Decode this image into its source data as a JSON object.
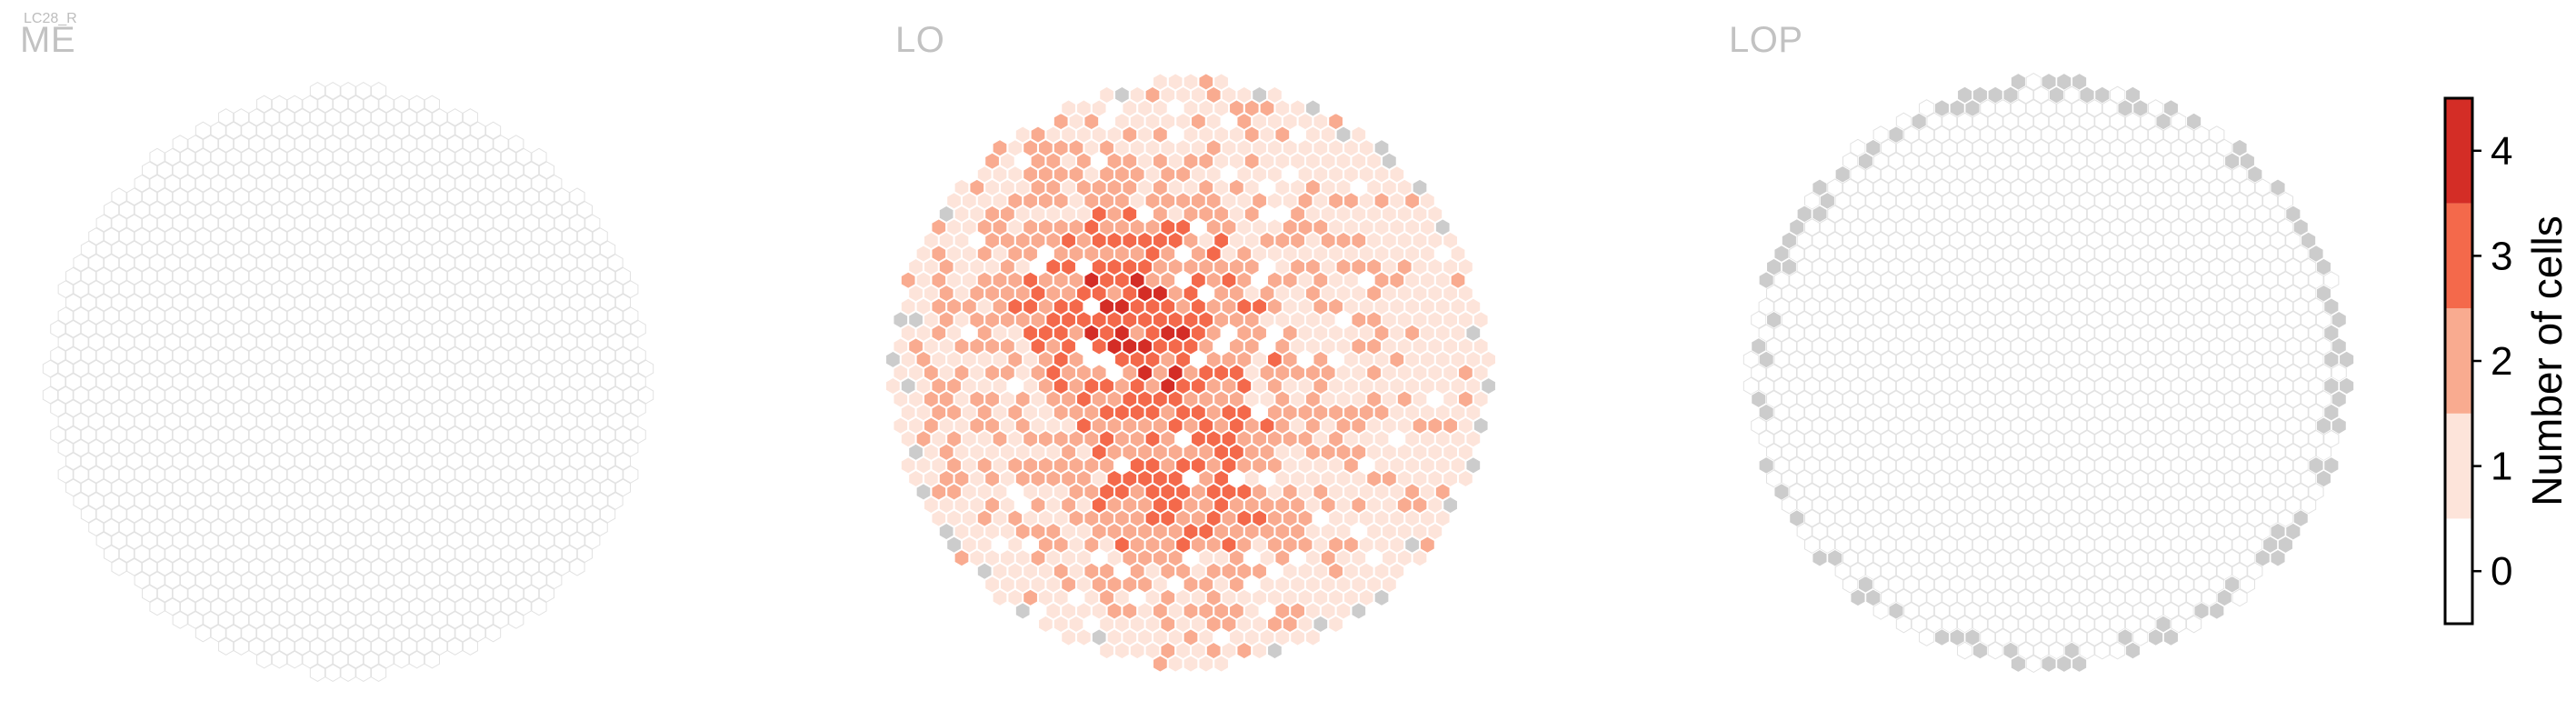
{
  "top_label": "LC28_R",
  "chart_data": {
    "type": "heatmap",
    "description_note": "",
    "panels": [
      {
        "name": "ME",
        "counts": "all cells 0 (empty hexagons)"
      },
      {
        "name": "LO",
        "counts": "cells 0–4, clustered high values in center"
      },
      {
        "name": "LOP",
        "counts": "all cells 0 except grey boundary cells"
      }
    ],
    "colorbar": {
      "label": "Number of cells",
      "ticks": [
        "0",
        "1",
        "2",
        "3",
        "4"
      ],
      "levels": [
        0,
        1,
        2,
        3,
        4
      ],
      "colors": [
        "#ffffff",
        "#fde4da",
        "#f9ab90",
        "#f4694b",
        "#d42d26"
      ]
    },
    "missing_color": "#cccccc",
    "empty_stroke": "#e2e2e2"
  }
}
